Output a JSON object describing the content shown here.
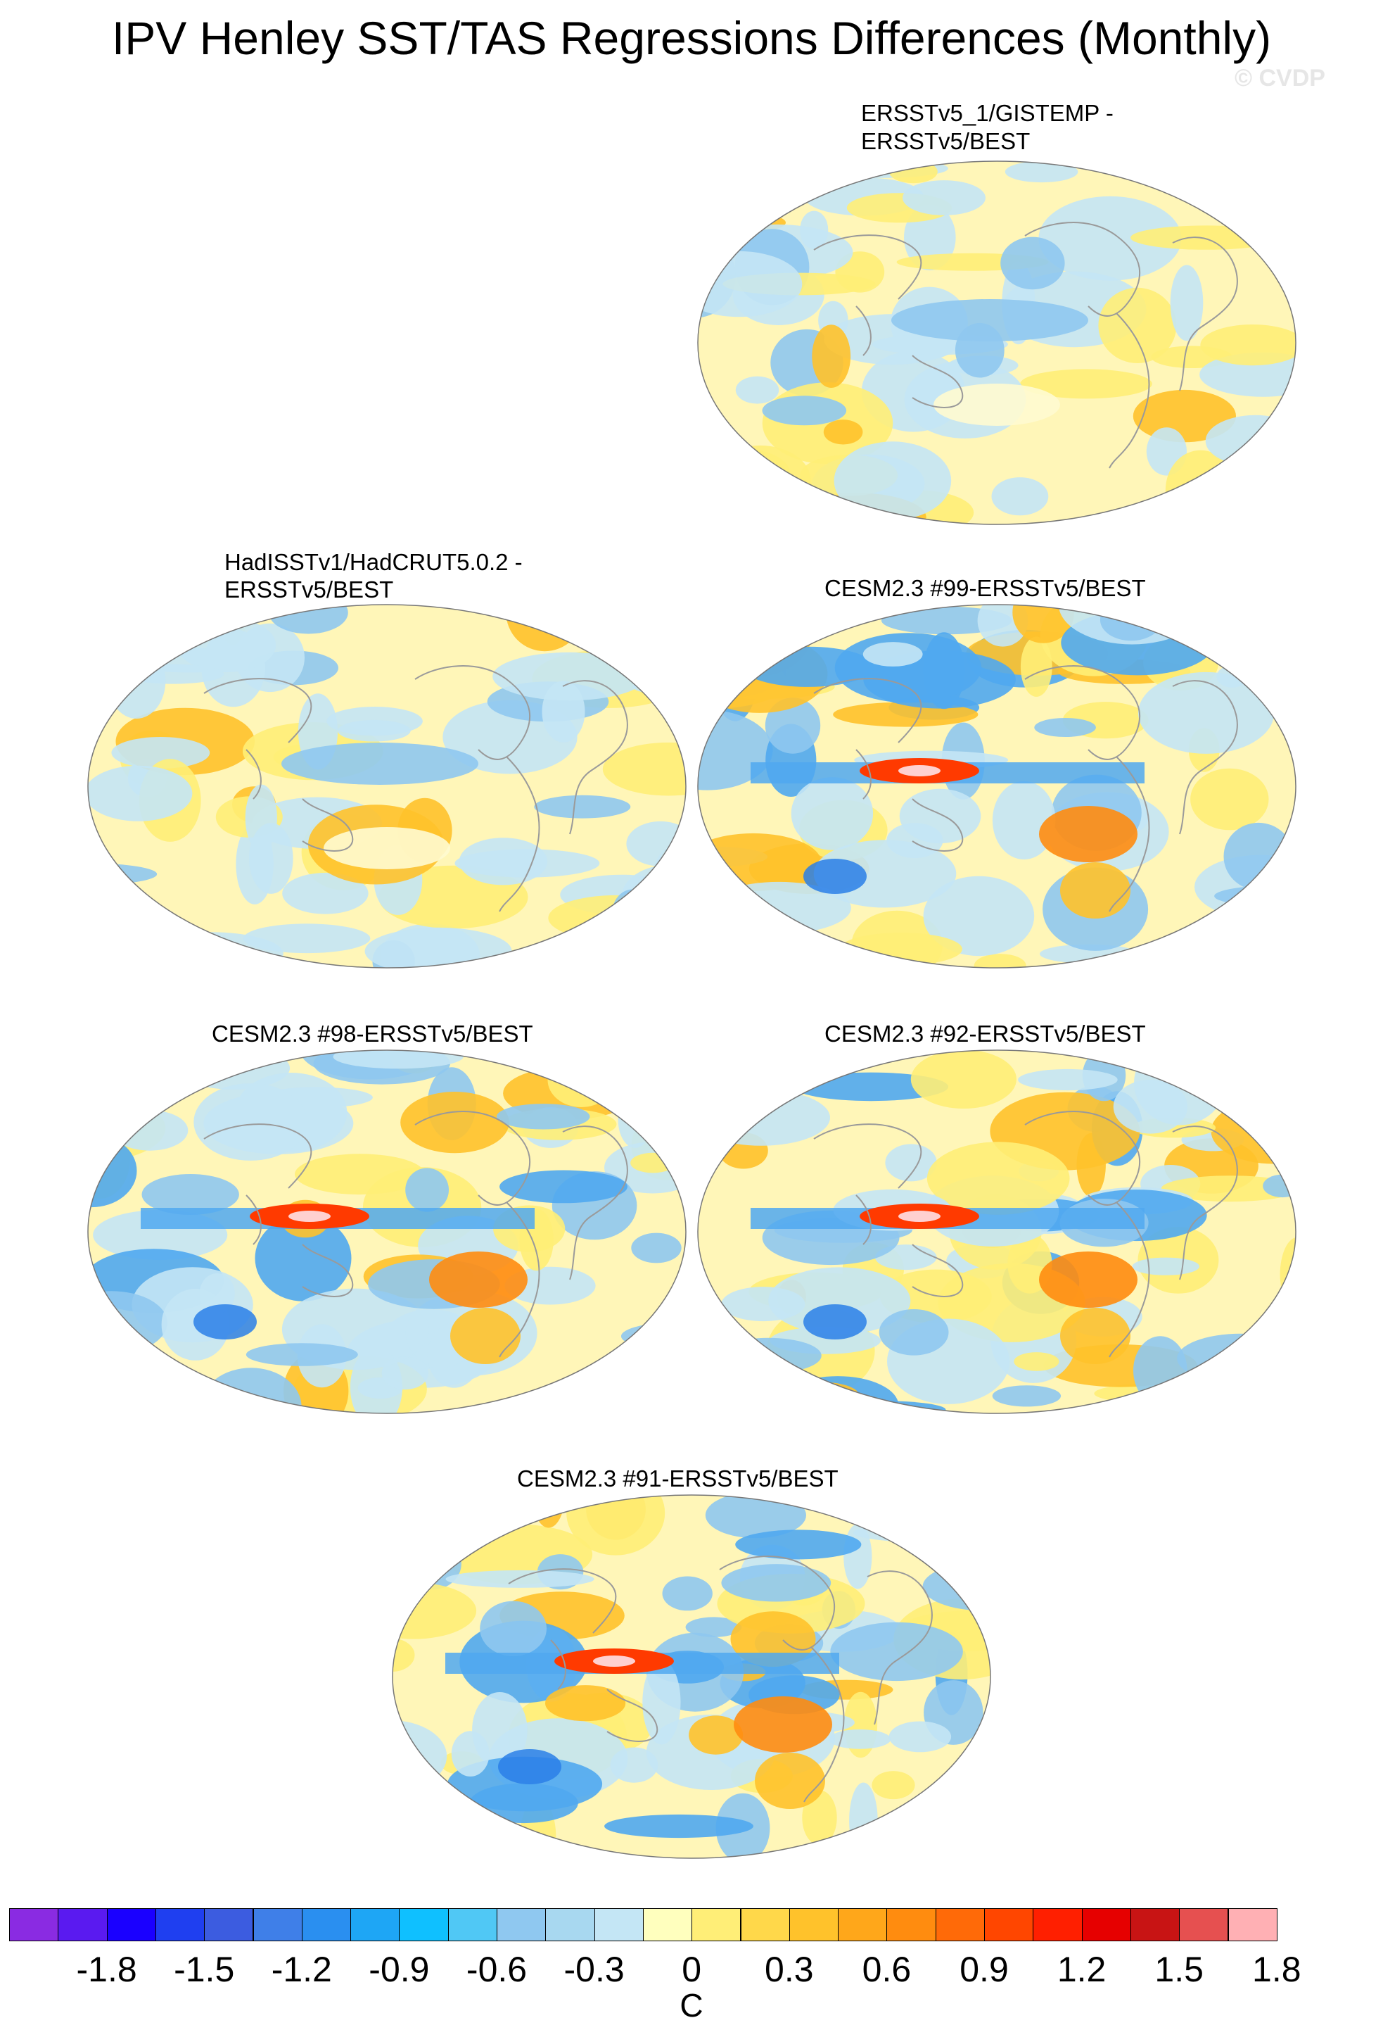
{
  "title": "IPV Henley SST/TAS Regressions Differences (Monthly)",
  "watermark": "© CVDP",
  "panels": [
    {
      "id": "p1",
      "title_line1": "ERSSTv5_1/GISTEMP -",
      "title_line2": "ERSSTv5/BEST",
      "pattern": "weak"
    },
    {
      "id": "p2",
      "title_line1": "HadISSTv1/HadCRUT5.0.2 -",
      "title_line2": "ERSSTv5/BEST",
      "pattern": "weak"
    },
    {
      "id": "p3",
      "title_line1": "CESM2.3 #99-ERSSTv5/BEST",
      "title_line2": "",
      "pattern": "strong"
    },
    {
      "id": "p4",
      "title_line1": "CESM2.3 #98-ERSSTv5/BEST",
      "title_line2": "",
      "pattern": "strong"
    },
    {
      "id": "p5",
      "title_line1": "CESM2.3 #92-ERSSTv5/BEST",
      "title_line2": "",
      "pattern": "strong"
    },
    {
      "id": "p6",
      "title_line1": "CESM2.3 #91-ERSSTv5/BEST",
      "title_line2": "",
      "pattern": "strong"
    }
  ],
  "colorbar": {
    "colors": [
      "#8a2be2",
      "#5a1af0",
      "#1a00ff",
      "#1f3ff0",
      "#3c5ce0",
      "#3f7fe8",
      "#2a8ff0",
      "#1ea6f5",
      "#0fc0ff",
      "#50c8f5",
      "#8fc8f0",
      "#a8d8f0",
      "#c4e6f5",
      "#ffffbe",
      "#ffee77",
      "#ffd84a",
      "#ffc22b",
      "#ffa71a",
      "#ff8c0f",
      "#ff6a08",
      "#ff4600",
      "#ff1f00",
      "#e60000",
      "#c81414",
      "#e65050",
      "#ffb0b4"
    ],
    "labels": [
      "-1.8",
      "-1.5",
      "-1.2",
      "-0.9",
      "-0.6",
      "-0.3",
      "0",
      "0.3",
      "0.6",
      "0.9",
      "1.2",
      "1.5",
      "1.8"
    ],
    "units": "C"
  }
}
